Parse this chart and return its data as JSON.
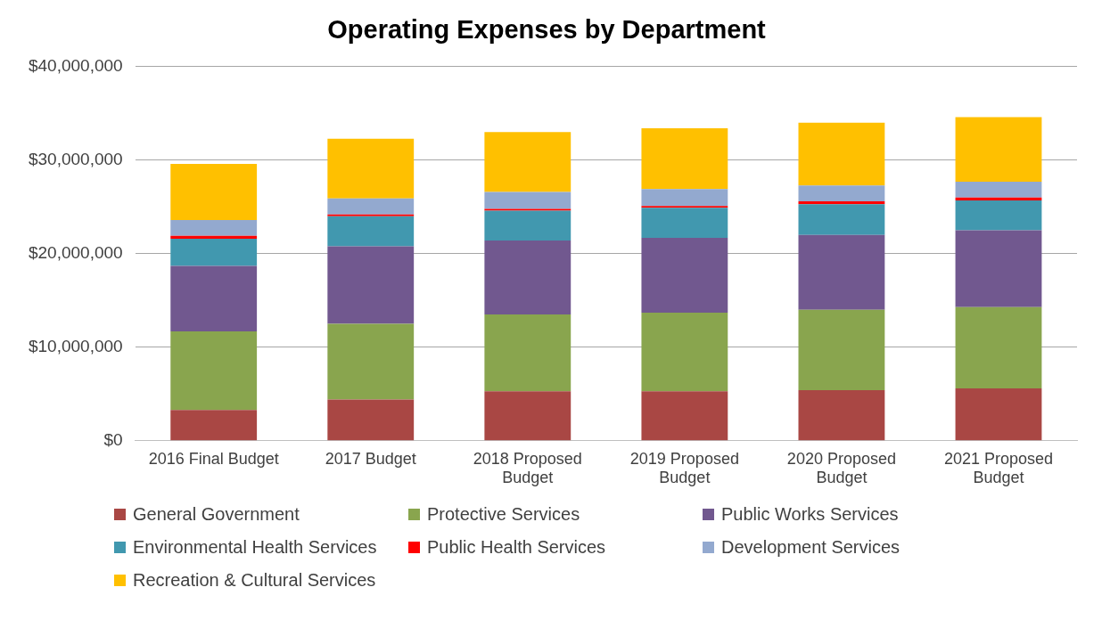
{
  "chart_data": {
    "type": "bar",
    "title": "Operating Expenses by Department",
    "stacked": true,
    "grid": "y",
    "legend": "bottom",
    "categories": [
      "2016 Final Budget",
      "2017 Budget",
      "2018 Proposed Budget",
      "2019 Proposed Budget",
      "2020 Proposed Budget",
      "2021 Proposed Budget"
    ],
    "ylim": [
      0,
      40000000
    ],
    "yticks": [
      {
        "value": 0,
        "label": "$0"
      },
      {
        "value": 10000000,
        "label": "$10,000,000"
      },
      {
        "value": 20000000,
        "label": "$20,000,000"
      },
      {
        "value": 30000000,
        "label": "$30,000,000"
      },
      {
        "value": 40000000,
        "label": "$40,000,000"
      }
    ],
    "series": [
      {
        "name": "General Government",
        "color": "#a94744",
        "values": [
          3300000,
          4400000,
          5300000,
          5300000,
          5400000,
          5600000
        ]
      },
      {
        "name": "Protective Services",
        "color": "#89a54e",
        "values": [
          8400000,
          8100000,
          8200000,
          8400000,
          8600000,
          8700000
        ]
      },
      {
        "name": "Public Works Services",
        "color": "#71588f",
        "values": [
          7000000,
          8300000,
          7900000,
          8000000,
          8000000,
          8200000
        ]
      },
      {
        "name": "Environmental Health Services",
        "color": "#4198af",
        "values": [
          2900000,
          3200000,
          3200000,
          3200000,
          3300000,
          3200000
        ]
      },
      {
        "name": "Public Health Services",
        "color": "#ff0000",
        "values": [
          300000,
          200000,
          200000,
          200000,
          300000,
          300000
        ]
      },
      {
        "name": "Development Services",
        "color": "#93a9cf",
        "values": [
          1700000,
          1700000,
          1800000,
          1800000,
          1700000,
          1700000
        ]
      },
      {
        "name": "Recreation & Cultural Services",
        "color": "#ffc000",
        "values": [
          6000000,
          6400000,
          6400000,
          6500000,
          6700000,
          6900000
        ]
      }
    ]
  }
}
